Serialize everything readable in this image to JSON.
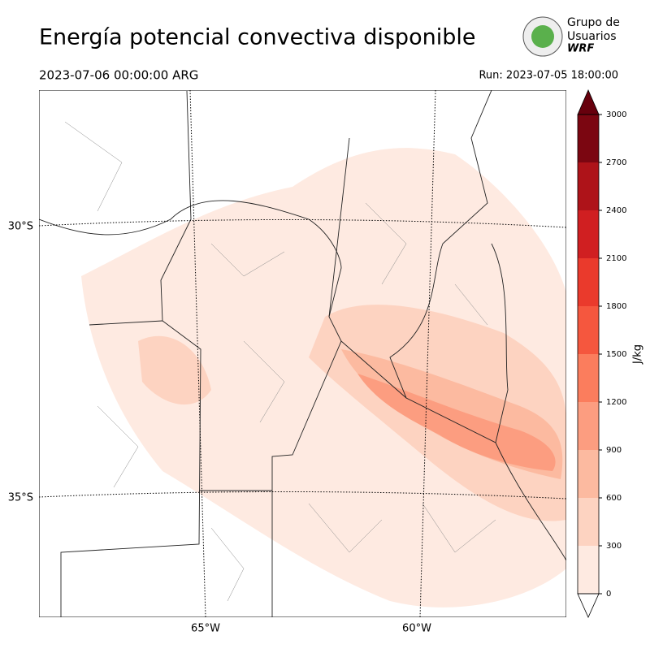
{
  "header": {
    "title": "Energía potencial convectiva disponible",
    "valid_time": "2023-07-06 00:00:00 ARG",
    "run": "Run: 2023-07-05 18:00:00",
    "logo": [
      "Grupo de",
      "Usuarios",
      "WRF"
    ]
  },
  "map": {
    "lat_labels": [
      "30°S",
      "35°S"
    ],
    "lon_labels": [
      "65°W",
      "60°W"
    ]
  },
  "colorbar": {
    "label": "J/kg",
    "lim": [
      0,
      3000
    ],
    "ticks": [
      0,
      300,
      600,
      900,
      1200,
      1500,
      1800,
      2100,
      2400,
      2700,
      3000
    ],
    "colors": [
      "#feeae1",
      "#fdd3c1",
      "#fcbaa0",
      "#fc9d80",
      "#fb7d5d",
      "#f5573e",
      "#ea3a2c",
      "#d01f21",
      "#ae1319",
      "#7b0611"
    ],
    "over_color": "#67000d",
    "under_color": "#ffffff"
  }
}
